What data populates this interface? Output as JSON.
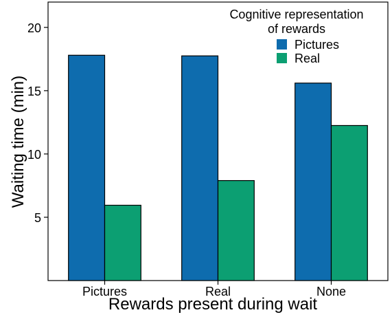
{
  "chart_data": {
    "type": "bar",
    "title": "",
    "xlabel": "Rewards present during wait",
    "ylabel": "Waiting time (min)",
    "categories": [
      "Pictures",
      "Real",
      "None"
    ],
    "series": [
      {
        "name": "Pictures",
        "values": [
          17.8,
          17.75,
          15.6
        ],
        "color": "#0E6CAE"
      },
      {
        "name": "Real",
        "values": [
          5.95,
          7.9,
          12.25
        ],
        "color": "#0C9F72"
      }
    ],
    "ylim": [
      0,
      22
    ],
    "yticks": [
      5,
      10,
      15,
      20
    ],
    "grid": false,
    "legend": {
      "title_line1": "Cognitive representation",
      "title_line2": "of rewards",
      "placement": "top-right"
    }
  }
}
